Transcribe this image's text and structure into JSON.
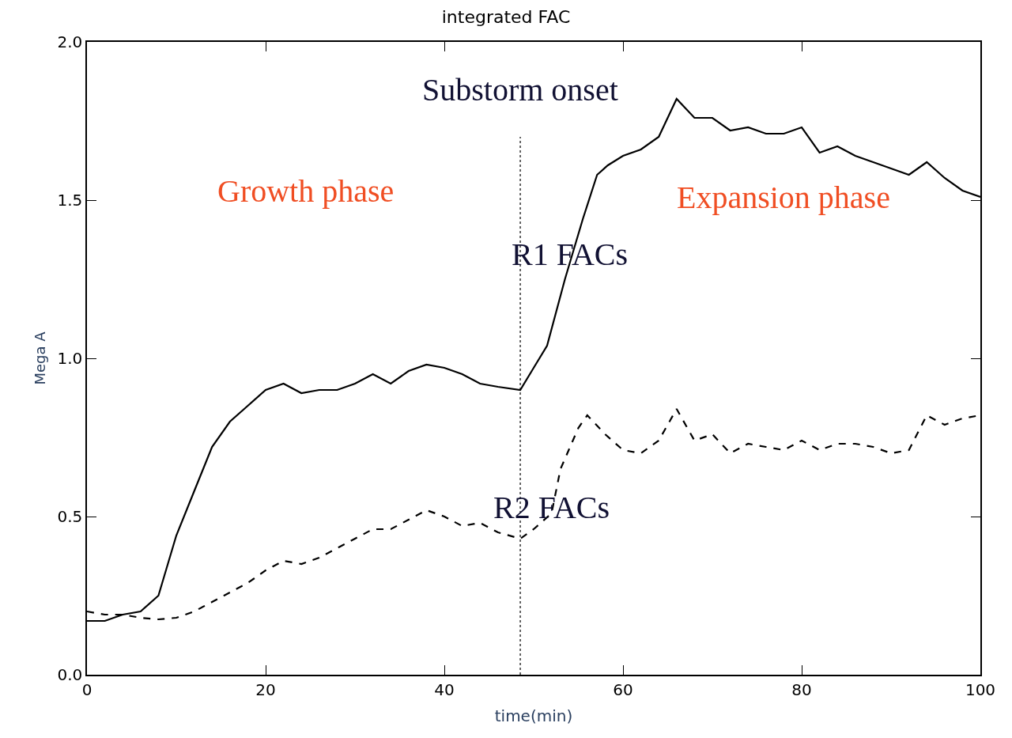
{
  "chart_data": {
    "type": "line",
    "title": "integrated FAC",
    "xlabel": "time(min)",
    "ylabel": "Mega A",
    "xlim": [
      0,
      100
    ],
    "xticks": [
      0,
      20,
      40,
      60,
      80,
      100
    ],
    "ylim": [
      0,
      2
    ],
    "yticks": [
      {
        "value": 0,
        "label": "0.0"
      },
      {
        "value": 0.5,
        "label": "0.5"
      },
      {
        "value": 1,
        "label": "1.0"
      },
      {
        "value": 1.5,
        "label": "1.5"
      },
      {
        "value": 2,
        "label": "2.0"
      }
    ],
    "marker": "none",
    "series": [
      {
        "color": "#000000",
        "line_style": "solid",
        "x": [
          0,
          2,
          4,
          6,
          8,
          10,
          12,
          14,
          16,
          18,
          20,
          22,
          24,
          26,
          28,
          30,
          32,
          34,
          36,
          38,
          40,
          42,
          44,
          46,
          48.5,
          50,
          51.5,
          53.5,
          55.5,
          57.1,
          58.3,
          60,
          62,
          64,
          66,
          68,
          70,
          72,
          74,
          76,
          78,
          80,
          82,
          84,
          86,
          88,
          90,
          92,
          94,
          96,
          98,
          100
        ],
        "values": [
          0.17,
          0.17,
          0.19,
          0.2,
          0.25,
          0.44,
          0.58,
          0.72,
          0.8,
          0.85,
          0.9,
          0.92,
          0.89,
          0.9,
          0.9,
          0.92,
          0.95,
          0.92,
          0.96,
          0.98,
          0.97,
          0.95,
          0.92,
          0.91,
          0.9,
          0.97,
          1.04,
          1.25,
          1.44,
          1.58,
          1.61,
          1.64,
          1.66,
          1.7,
          1.82,
          1.76,
          1.76,
          1.72,
          1.73,
          1.71,
          1.71,
          1.73,
          1.65,
          1.67,
          1.64,
          1.62,
          1.6,
          1.58,
          1.62,
          1.57,
          1.53,
          1.51
        ]
      },
      {
        "color": "#000000",
        "line_style": "dashed",
        "x": [
          0,
          2,
          4,
          6,
          8,
          10,
          12,
          14,
          16,
          18,
          20,
          22,
          24,
          26,
          28,
          30,
          32,
          34,
          36,
          38,
          40,
          42,
          44,
          46,
          48.5,
          50,
          52,
          53,
          55,
          56,
          58,
          60,
          62,
          64,
          66,
          68,
          70,
          72,
          74,
          76,
          78,
          80,
          82,
          84,
          86,
          88,
          90,
          92,
          94,
          96,
          98,
          100
        ],
        "values": [
          0.2,
          0.19,
          0.19,
          0.18,
          0.175,
          0.18,
          0.2,
          0.23,
          0.26,
          0.29,
          0.33,
          0.36,
          0.35,
          0.37,
          0.4,
          0.43,
          0.46,
          0.46,
          0.49,
          0.52,
          0.5,
          0.47,
          0.48,
          0.45,
          0.43,
          0.46,
          0.51,
          0.65,
          0.78,
          0.82,
          0.76,
          0.71,
          0.7,
          0.74,
          0.84,
          0.74,
          0.76,
          0.7,
          0.73,
          0.72,
          0.71,
          0.74,
          0.71,
          0.73,
          0.73,
          0.72,
          0.7,
          0.71,
          0.82,
          0.79,
          0.81,
          0.82
        ]
      }
    ],
    "ref_lines": [
      {
        "axis": "x",
        "value": 48.5,
        "label": "Substorm onset",
        "color": "#000000",
        "line_style": "dotted"
      }
    ],
    "annotations": [
      "Growth phase",
      "Expansion phase",
      "R1 FACs",
      "R2 FACs"
    ]
  }
}
